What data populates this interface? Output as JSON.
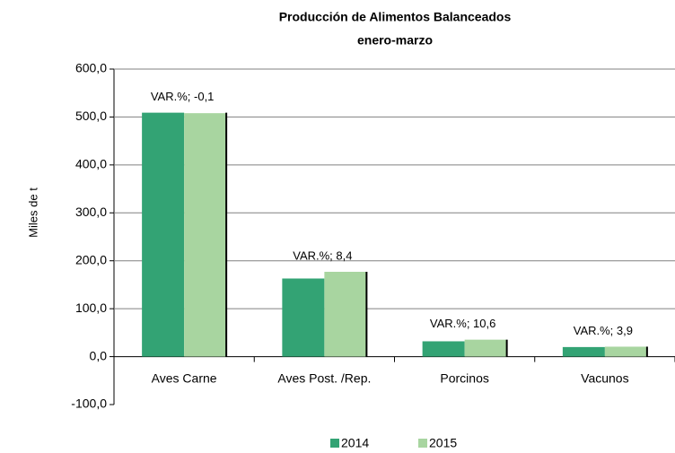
{
  "chart_data": {
    "type": "bar",
    "title": "Producción de Alimentos Balanceados",
    "subtitle": "enero-marzo",
    "y_label": "Miles de t",
    "categories": [
      "Aves Carne",
      "Aves Post. /Rep.",
      "Porcinos",
      "Vacunos"
    ],
    "series": [
      {
        "name": "2014",
        "color": "#33a374",
        "values": [
          509,
          163,
          32,
          20
        ]
      },
      {
        "name": "2015",
        "color": "#a8d5a0",
        "values": [
          508,
          177,
          35.4,
          20.8
        ]
      }
    ],
    "annotations": [
      "VAR.%; -0,1",
      "VAR.%; 8,4",
      "VAR.%; 10,6",
      "VAR.%; 3,9"
    ],
    "ylim": [
      -100,
      600
    ],
    "yticks": [
      {
        "value": -100,
        "label": "-100,0"
      },
      {
        "value": 0,
        "label": "0,0"
      },
      {
        "value": 100,
        "label": "100,0"
      },
      {
        "value": 200,
        "label": "200,0"
      },
      {
        "value": 300,
        "label": "300,0"
      },
      {
        "value": 400,
        "label": "400,0"
      },
      {
        "value": 500,
        "label": "500,0"
      },
      {
        "value": 600,
        "label": "600,0"
      }
    ],
    "grid": true
  }
}
